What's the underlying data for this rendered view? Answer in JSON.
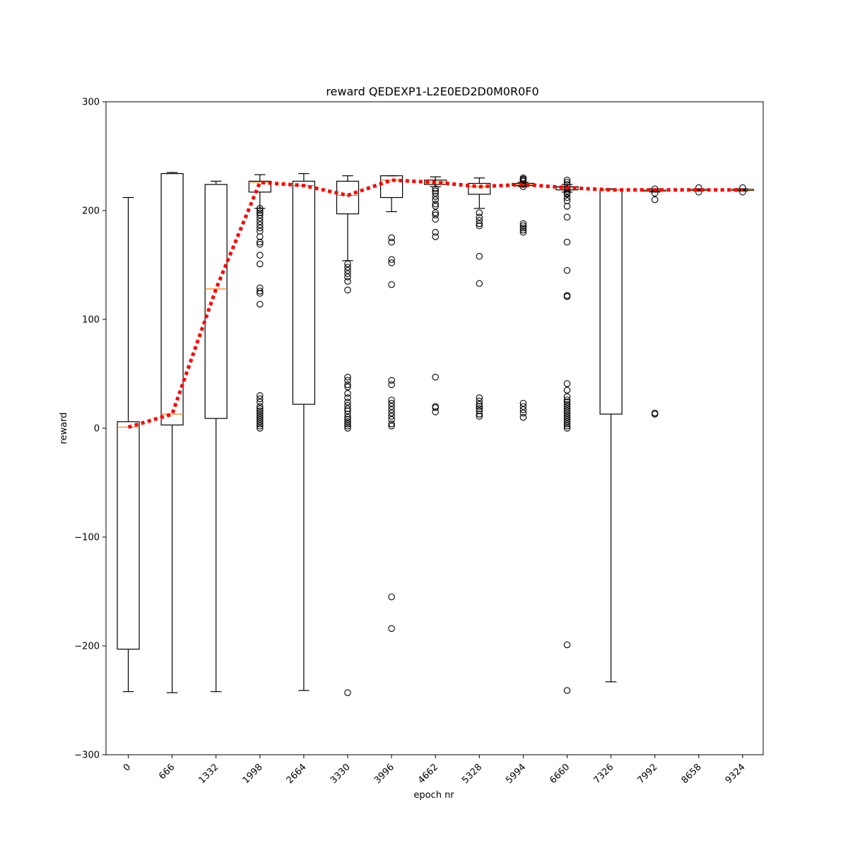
{
  "chart_data": {
    "type": "box",
    "title": "reward QEDEXP1-L2E0ED2D0M0R0F0",
    "xlabel": "epoch nr",
    "ylabel": "reward",
    "ylim": [
      -300,
      300
    ],
    "yticks": [
      -300,
      -200,
      -100,
      0,
      100,
      200,
      300
    ],
    "ytick_labels": [
      "−300",
      "−200",
      "−100",
      "0",
      "100",
      "200",
      "300"
    ],
    "categories": [
      "0",
      "666",
      "1332",
      "1998",
      "2664",
      "3330",
      "3996",
      "4662",
      "5328",
      "5994",
      "6660",
      "7326",
      "7992",
      "8658",
      "9324"
    ],
    "colors": {
      "median": "#ff7f0e",
      "mean_line": "#ff0000",
      "box": "#000000"
    },
    "boxes": [
      {
        "whislo": -242,
        "q1": -203,
        "med": 1,
        "q3": 6,
        "whishi": 212,
        "fliers": []
      },
      {
        "whislo": -243,
        "q1": 3,
        "med": 13,
        "q3": 234,
        "whishi": 235,
        "fliers": []
      },
      {
        "whislo": -242,
        "q1": 9,
        "med": 128,
        "q3": 224,
        "whishi": 227,
        "fliers": []
      },
      {
        "whislo": 202,
        "q1": 217,
        "med": 226,
        "q3": 227,
        "whishi": 233,
        "fliers": [
          0,
          2,
          4,
          6,
          8,
          10,
          12,
          14,
          16,
          18,
          20,
          24,
          27,
          30,
          114,
          124,
          126,
          129,
          151,
          159,
          169,
          171,
          176,
          181,
          184,
          187,
          190,
          193,
          196,
          198,
          200,
          202
        ]
      },
      {
        "whislo": -241,
        "q1": 22,
        "med": 223,
        "q3": 227,
        "whishi": 234,
        "fliers": []
      },
      {
        "whislo": 154,
        "q1": 197,
        "med": 214,
        "q3": 227,
        "whishi": 232,
        "fliers": [
          -243,
          0,
          2,
          4,
          6,
          8,
          10,
          13,
          16,
          18,
          21,
          24,
          28,
          32,
          38,
          40,
          44,
          47,
          127,
          135,
          139,
          142,
          145,
          148,
          151
        ]
      },
      {
        "whislo": 199,
        "q1": 212,
        "med": 228,
        "q3": 232,
        "whishi": 232,
        "fliers": [
          -184,
          -155,
          2,
          4,
          8,
          11,
          14,
          17,
          20,
          23,
          26,
          40,
          44,
          132,
          152,
          155,
          171,
          175
        ]
      },
      {
        "whislo": 222,
        "q1": 224,
        "med": 226,
        "q3": 228,
        "whishi": 231,
        "fliers": [
          15,
          19,
          20,
          47,
          176,
          180,
          192,
          196,
          198,
          204,
          206,
          210,
          213,
          216,
          218,
          220
        ]
      },
      {
        "whislo": 202,
        "q1": 215,
        "med": 222,
        "q3": 225,
        "whishi": 230,
        "fliers": [
          11,
          13,
          16,
          18,
          20,
          22,
          25,
          28,
          133,
          158,
          186,
          188,
          191,
          194,
          198
        ]
      },
      {
        "whislo": 222,
        "q1": 223,
        "med": 224,
        "q3": 225,
        "whishi": 226,
        "fliers": [
          10,
          14,
          17,
          20,
          23,
          180,
          182,
          184,
          186,
          188,
          222,
          224,
          227,
          228,
          229,
          230
        ]
      },
      {
        "whislo": 217,
        "q1": 219,
        "med": 221,
        "q3": 222,
        "whishi": 224,
        "fliers": [
          -241,
          -199,
          0,
          2,
          4,
          6,
          8,
          10,
          12,
          14,
          16,
          18,
          20,
          22,
          24,
          26,
          29,
          35,
          41,
          121,
          122,
          145,
          171,
          194,
          204,
          209,
          212,
          215,
          216,
          218,
          220,
          224,
          226,
          228
        ]
      },
      {
        "whislo": -233,
        "q1": 13,
        "med": 219,
        "q3": 219,
        "whishi": 220,
        "fliers": []
      },
      {
        "whislo": 217,
        "q1": 218,
        "med": 219,
        "q3": 219,
        "whishi": 220,
        "fliers": [
          13,
          14,
          210,
          216,
          220
        ]
      },
      {
        "whislo": 218,
        "q1": 218.5,
        "med": 219,
        "q3": 219.5,
        "whishi": 220,
        "fliers": [
          217,
          221
        ]
      },
      {
        "whislo": 218,
        "q1": 218.5,
        "med": 219,
        "q3": 219.5,
        "whishi": 220,
        "fliers": [
          217,
          221
        ]
      }
    ],
    "mean_line": [
      1,
      13,
      128,
      226,
      223,
      214,
      228,
      226,
      222,
      224,
      221,
      219,
      219,
      219,
      219
    ],
    "grid": false,
    "legend": "none"
  }
}
